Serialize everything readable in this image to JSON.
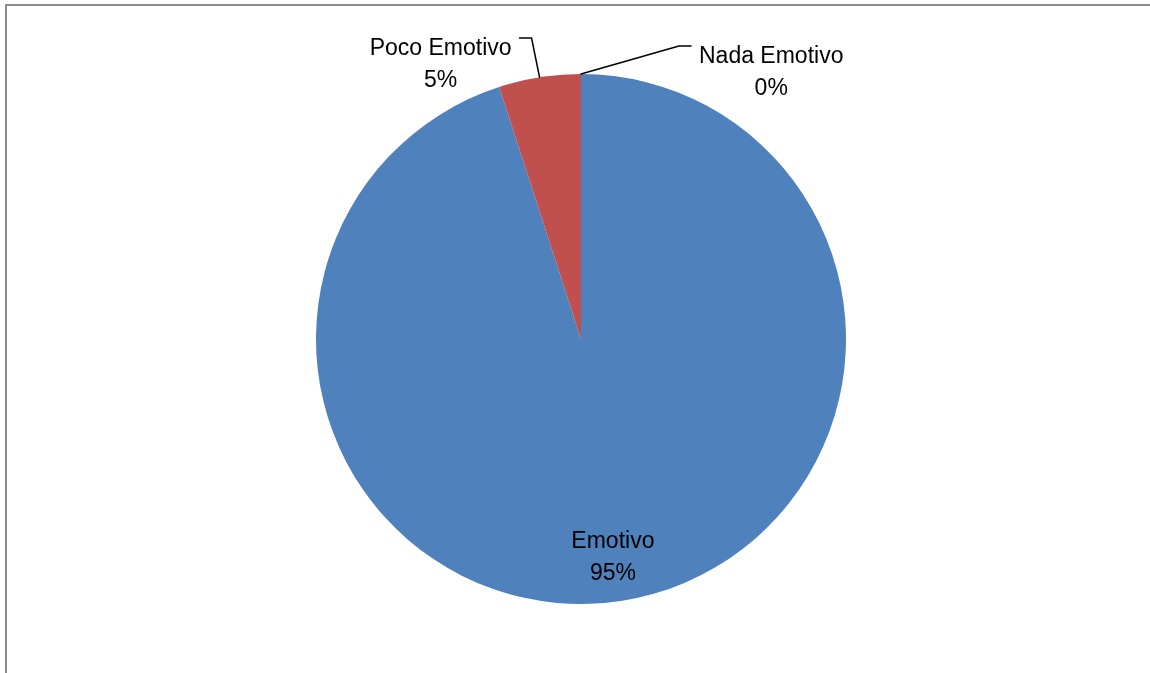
{
  "chart_data": {
    "type": "pie",
    "categories": [
      "Emotivo",
      "Poco Emotivo",
      "Nada Emotivo"
    ],
    "values": [
      95,
      5,
      0
    ],
    "colors": [
      "#4f81bd",
      "#c0504d",
      "#9bbb59"
    ],
    "value_labels": [
      "95%",
      "5%",
      "0%"
    ]
  }
}
